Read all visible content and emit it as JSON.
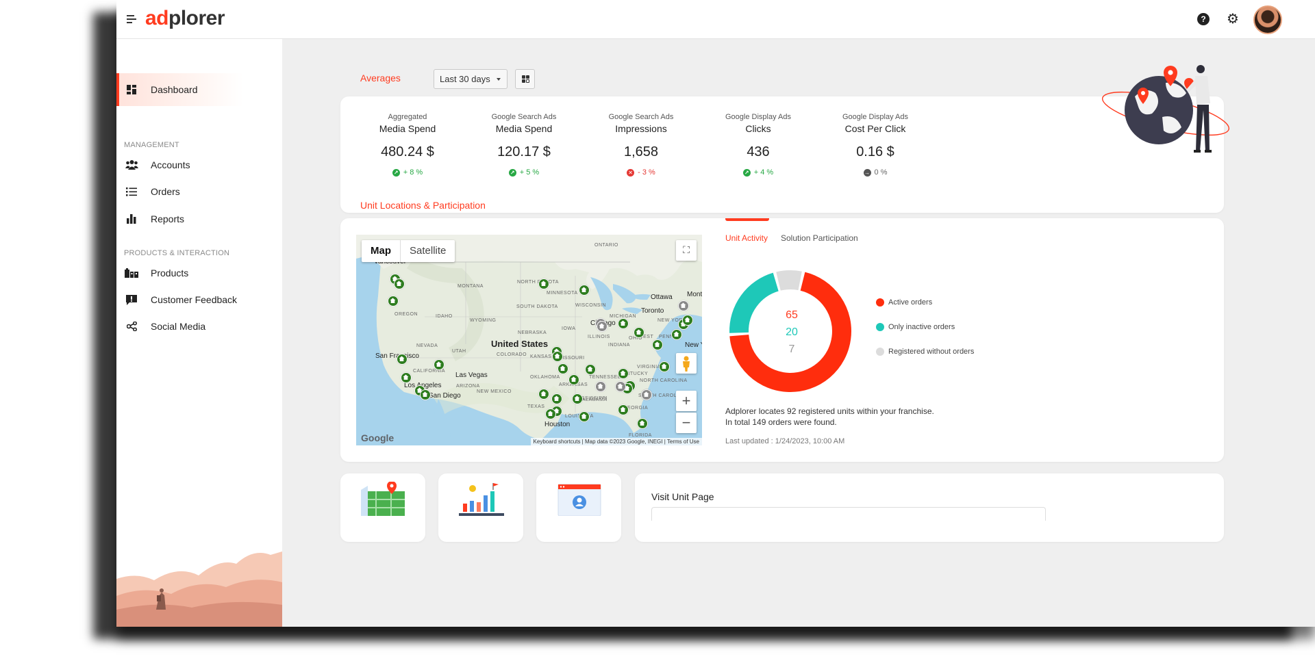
{
  "brand": {
    "part1": "ad",
    "part2": "plorer"
  },
  "topbar": {
    "help_icon": "help-icon",
    "settings_icon": "gear-icon",
    "avatar": "user-avatar"
  },
  "sidebar": {
    "items": [
      {
        "label": "Dashboard",
        "icon": "dashboard-icon",
        "active": true
      },
      {
        "label": "Accounts",
        "icon": "users-icon"
      },
      {
        "label": "Orders",
        "icon": "list-icon"
      },
      {
        "label": "Reports",
        "icon": "bar-chart-icon"
      },
      {
        "label": "Products",
        "icon": "products-icon"
      },
      {
        "label": "Customer Feedback",
        "icon": "feedback-icon"
      },
      {
        "label": "Social Media",
        "icon": "share-icon"
      }
    ],
    "sections": [
      "MANAGEMENT",
      "PRODUCTS & INTERACTION"
    ]
  },
  "averages": {
    "title": "Averages",
    "range": "Last 30 days",
    "metrics": [
      {
        "line1": "Aggregated",
        "line2": "Media Spend",
        "value": "480.24 $",
        "change": "+ 8 %",
        "trend": "up"
      },
      {
        "line1": "Google Search Ads",
        "line2": "Media Spend",
        "value": "120.17 $",
        "change": "+ 5 %",
        "trend": "up"
      },
      {
        "line1": "Google Search Ads",
        "line2": "Impressions",
        "value": "1,658",
        "change": "- 3 %",
        "trend": "down"
      },
      {
        "line1": "Google Display Ads",
        "line2": "Clicks",
        "value": "436",
        "change": "+ 4 %",
        "trend": "up"
      },
      {
        "line1": "Google Display Ads",
        "line2": "Cost Per Click",
        "value": "0.16 $",
        "change": "0 %",
        "trend": "flat"
      }
    ]
  },
  "units": {
    "title": "Unit Locations & Participation",
    "map": {
      "toggle_map": "Map",
      "toggle_satellite": "Satellite",
      "zoom_in": "+",
      "zoom_out": "−",
      "google": "Google",
      "footer": "Keyboard shortcuts  |  Map data ©2023 Google, INEGI  |  Terms of Use",
      "country_label": "United States",
      "labels": [
        "MONTANA",
        "NORTH DAKOTA",
        "MINNESOTA",
        "SOUTH DAKOTA",
        "WISCONSIN",
        "OREGON",
        "IDAHO",
        "WYOMING",
        "IOWA",
        "MICHIGAN",
        "NEBRASKA",
        "ILLINOIS",
        "OHIO",
        "NEVADA",
        "UTAH",
        "COLORADO",
        "KANSAS",
        "MISSOURI",
        "INDIANA",
        "KENTUCKY",
        "VIRGINIA",
        "CALIFORNIA",
        "ARIZONA",
        "OKLAHOMA",
        "TENNESSEE",
        "NORTH CAROLINA",
        "NEW MEXICO",
        "ARKANSAS",
        "SOUTH CAROLINA",
        "MISSISSIPPI",
        "ALABAMA",
        "GEORGIA",
        "TEXAS",
        "LOUISIANA",
        "FLORIDA",
        "ONTARIO",
        "NEW YORK",
        "PENN",
        "WEST",
        "Ottawa",
        "Toronto",
        "Chicago",
        "San Francisco",
        "Las Vegas",
        "Los Angeles",
        "San Diego",
        "Houston",
        "New Y",
        "Mont",
        "Vancouver"
      ]
    },
    "tabs": {
      "active": "Unit Activity",
      "other": "Solution Participation"
    },
    "legend": [
      {
        "label": "Active orders",
        "color": "#ff2d0d"
      },
      {
        "label": "Only inactive orders",
        "color": "#1ec8b8"
      },
      {
        "label": "Registered without orders",
        "color": "#dcdcdc"
      }
    ],
    "donut": {
      "active": 65,
      "inactive": 20,
      "without": 7
    },
    "info_line1": "Adplorer locates 92 registered units within your franchise.",
    "info_line2": "In total 149 orders were found.",
    "last_updated": "Last updated : 1/24/2023, 10:00 AM"
  },
  "visit": {
    "title": "Visit Unit Page"
  }
}
